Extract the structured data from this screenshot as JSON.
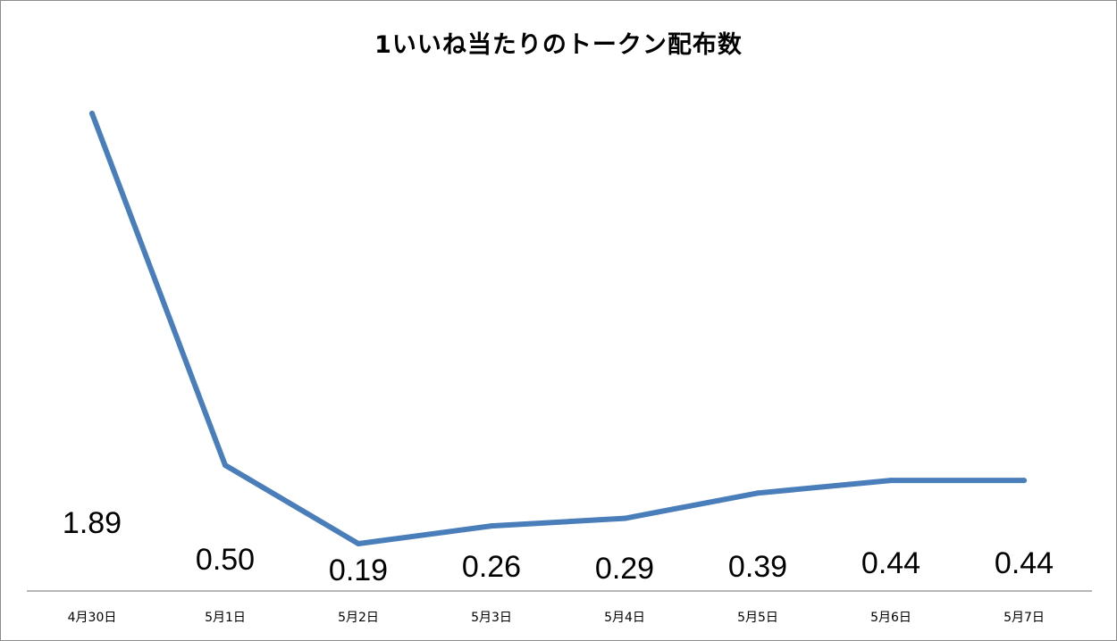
{
  "chart_data": {
    "type": "line",
    "title": "1いいね当たりのトークン配布数",
    "categories": [
      "4月30日",
      "5月1日",
      "5月2日",
      "5月3日",
      "5月4日",
      "5月5日",
      "5月6日",
      "5月7日"
    ],
    "values": [
      1.89,
      0.5,
      0.19,
      0.26,
      0.29,
      0.39,
      0.44,
      0.44
    ],
    "data_labels": [
      "1.89",
      "0.50",
      "0.19",
      "0.26",
      "0.29",
      "0.39",
      "0.44",
      "0.44"
    ],
    "xlabel": "",
    "ylabel": "",
    "grid": false,
    "legend": "none",
    "line_color": "#4a7ebb"
  }
}
